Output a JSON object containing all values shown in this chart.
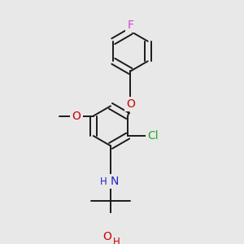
{
  "bg_color": "#e8e8e8",
  "bond_color": "#1a1a1a",
  "bond_width": 1.4,
  "atom_colors": {
    "F": "#cc44cc",
    "O": "#cc0000",
    "Cl": "#22aa22",
    "N": "#2222cc",
    "C": "#1a1a1a"
  },
  "font_size": 10,
  "font_size_small": 8.5
}
